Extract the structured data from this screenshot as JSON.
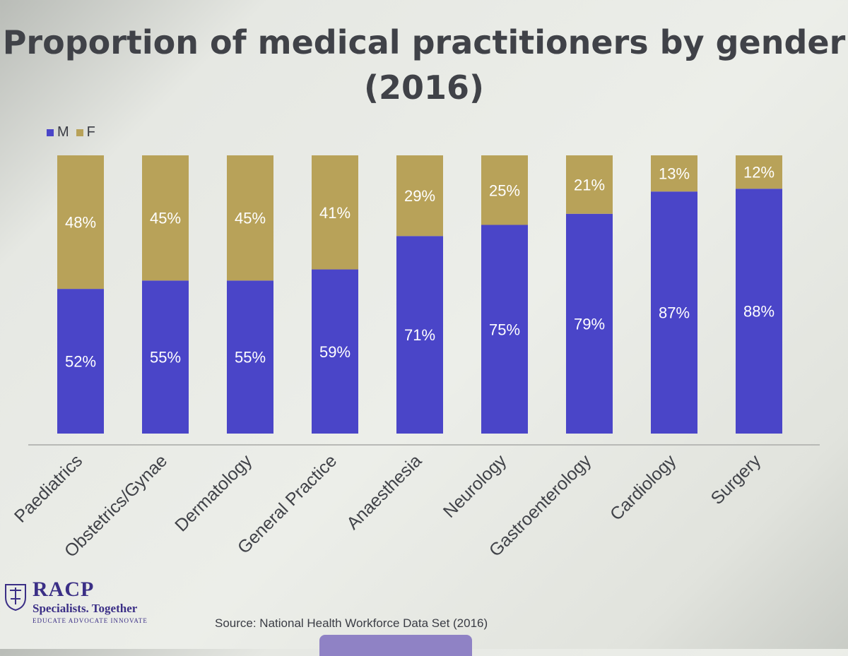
{
  "title": "Proportion of medical practitioners by gender (2016)",
  "source": "Source: National Health Workforce Data Set (2016)",
  "logo": {
    "brand": "RACP",
    "tagline": "Specialists. Together",
    "subtagline": "EDUCATE ADVOCATE INNOVATE"
  },
  "colors": {
    "male": "#4a45c8",
    "female": "#b8a259",
    "text": "#404248"
  },
  "chart_data": {
    "type": "bar",
    "stacked": true,
    "title": "Proportion of medical practitioners by gender (2016)",
    "categories": [
      "Paediatrics",
      "Obstetrics/Gynae",
      "Dermatology",
      "General Practice",
      "Anaesthesia",
      "Neurology",
      "Gastroenterology",
      "Cardiology",
      "Surgery"
    ],
    "series": [
      {
        "name": "M",
        "values": [
          52,
          55,
          55,
          59,
          71,
          75,
          79,
          87,
          88
        ],
        "labels": [
          "52%",
          "55%",
          "55%",
          "59%",
          "71%",
          "75%",
          "79%",
          "87%",
          "88%"
        ]
      },
      {
        "name": "F",
        "values": [
          48,
          45,
          45,
          41,
          29,
          25,
          21,
          13,
          12
        ],
        "labels": [
          "48%",
          "45%",
          "45%",
          "41%",
          "29%",
          "25%",
          "21%",
          "13%",
          "12%"
        ]
      }
    ],
    "ylim": [
      0,
      100
    ],
    "legend": "top-left",
    "grid": false,
    "xlabel": "",
    "ylabel": ""
  }
}
